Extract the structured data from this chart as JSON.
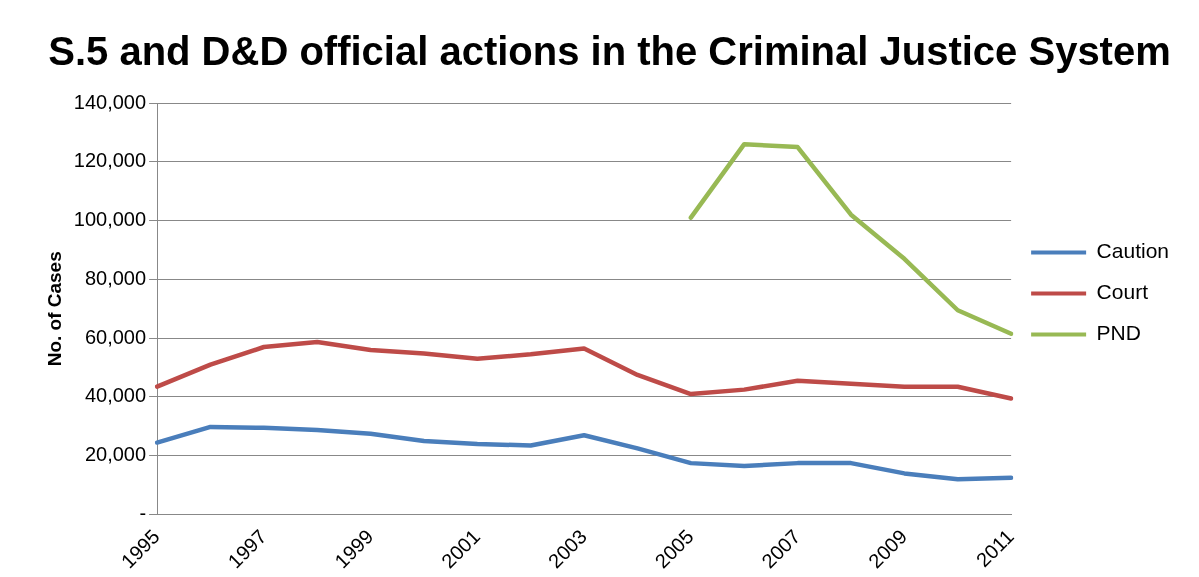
{
  "chart_data": {
    "type": "line",
    "title": "S.5 and D&D official actions in the Criminal Justice System",
    "ylabel": "No. of Cases",
    "categories": [
      "1995",
      null,
      "1997",
      null,
      "1999",
      null,
      "2001",
      null,
      "2003",
      null,
      "2005",
      null,
      "2007",
      null,
      "2009",
      null,
      "2011"
    ],
    "series": [
      {
        "name": "Caution",
        "color": "#4a7ebb",
        "values": [
          24500,
          29800,
          29500,
          28800,
          27500,
          25000,
          24000,
          23500,
          27000,
          22500,
          17500,
          16500,
          17500,
          17500,
          14000,
          12000,
          12500
        ]
      },
      {
        "name": "Court",
        "color": "#be4b48",
        "values": [
          43500,
          51000,
          57000,
          58700,
          56000,
          54800,
          53000,
          54500,
          56500,
          47500,
          41000,
          42500,
          45500,
          44500,
          43500,
          43500,
          39500
        ]
      },
      {
        "name": "PND",
        "color": "#98b954",
        "values": [
          null,
          null,
          null,
          null,
          null,
          null,
          null,
          null,
          null,
          null,
          101000,
          126000,
          125000,
          102000,
          87000,
          69500,
          61500
        ]
      }
    ],
    "ylim": [
      0,
      140000
    ],
    "yticks": [
      {
        "value": 0,
        "label": "-"
      },
      {
        "value": 20000,
        "label": "20,000"
      },
      {
        "value": 40000,
        "label": "40,000"
      },
      {
        "value": 60000,
        "label": "60,000"
      },
      {
        "value": 80000,
        "label": "80,000"
      },
      {
        "value": 100000,
        "label": "100,000"
      },
      {
        "value": 120000,
        "label": "120,000"
      },
      {
        "value": 140000,
        "label": "140,000"
      }
    ],
    "grid": "y",
    "legend": "right",
    "marker": "none",
    "line_style": "solid"
  }
}
